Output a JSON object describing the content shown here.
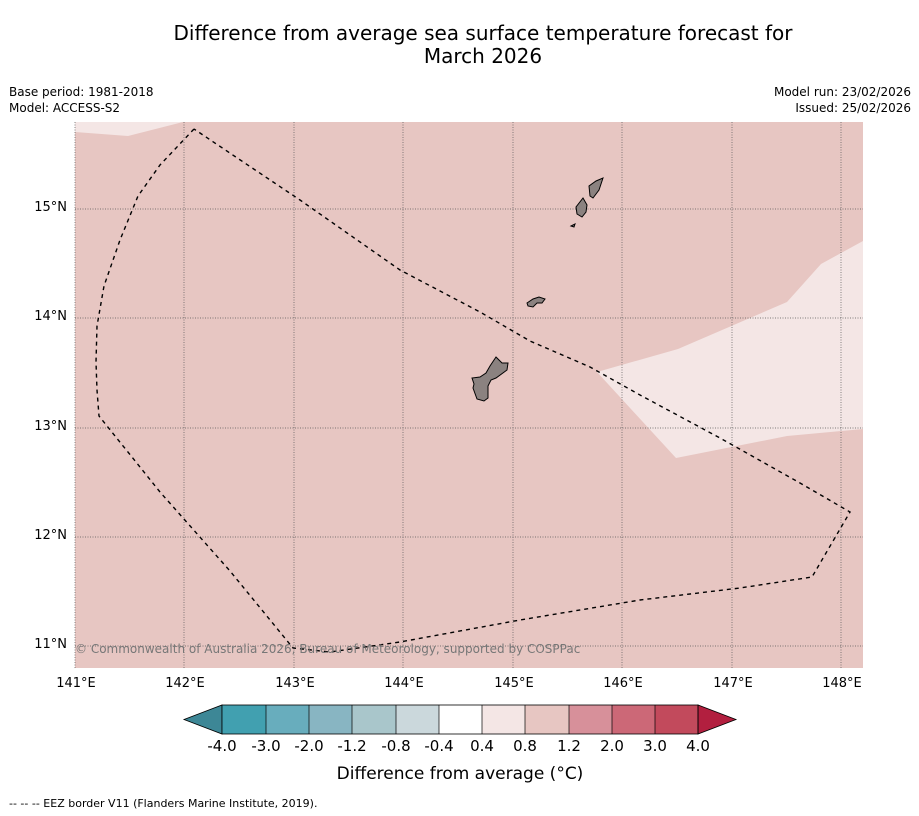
{
  "title": "Difference from average sea surface temperature forecast for",
  "title_line2": "March 2026",
  "base_period": "Base period: 1981-2018",
  "model": "Model: ACCESS-S2",
  "model_run": "Model run: 23/02/2026",
  "issued": "Issued: 25/02/2026",
  "map": {
    "lon_range": [
      141.0,
      148.2
    ],
    "lat_range": [
      10.8,
      15.8
    ],
    "lon_labels": [
      "141°E",
      "142°E",
      "143°E",
      "144°E",
      "145°E",
      "146°E",
      "147°E",
      "148°E"
    ],
    "lat_labels": [
      "15°N",
      "14°N",
      "13°N",
      "12°N",
      "11°N"
    ],
    "ocean_anomaly_main": "0.8 to 1.2",
    "ocean_anomaly_patch": "0.4 to 0.8",
    "islands": [
      "Guam",
      "Rota",
      "Tinian",
      "Saipan"
    ],
    "copyright": "© Commonwealth of Australia 2026, Bureau of Meteorology, supported by COSPPac"
  },
  "colorbar": {
    "ticks": [
      "-4.0",
      "-3.0",
      "-2.0",
      "-1.2",
      "-0.8",
      "-0.4",
      "0.4",
      "0.8",
      "1.2",
      "2.0",
      "3.0",
      "4.0"
    ],
    "colors": [
      "#41a0b0",
      "#68adbd",
      "#88b5c2",
      "#a9c6cb",
      "#cbd8dc",
      "#ffffff",
      "#f4e6e5",
      "#e7c6c2",
      "#d7909a",
      "#cc6877",
      "#c24a5c"
    ],
    "low_extend_color": "#3d8796",
    "high_extend_color": "#b21f3f",
    "label": "Difference from average (",
    "label_unit": "°C)"
  },
  "colors": {
    "anomaly_main": "#e7c6c2",
    "anomaly_patch": "#f4e6e5",
    "land": "#8b8280"
  },
  "footnote": "--  --  -- EEZ border V11 (Flanders Marine Institute, 2019)."
}
